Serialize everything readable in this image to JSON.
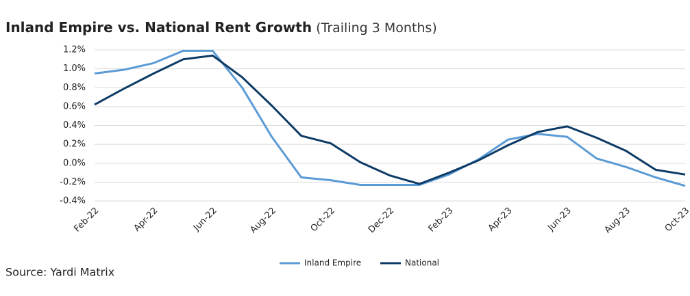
{
  "chart_data": {
    "type": "line",
    "title": "Inland Empire vs. National Rent Growth",
    "subtitle": "(Trailing 3 Months)",
    "source": "Source: Yardi Matrix",
    "categories": [
      "Feb-22",
      null,
      "Apr-22",
      null,
      "Jun-22",
      null,
      "Aug-22",
      null,
      "Oct-22",
      null,
      "Dec-22",
      null,
      "Feb-23",
      null,
      "Apr-23",
      null,
      "Jun-23",
      null,
      "Aug-23",
      null,
      "Oct-23"
    ],
    "series": [
      {
        "name": "Inland Empire",
        "color": "#5b9bd5",
        "values": [
          0.95,
          0.99,
          1.06,
          1.19,
          1.19,
          0.8,
          0.28,
          -0.15,
          -0.18,
          -0.23,
          -0.23,
          -0.23,
          -0.12,
          0.04,
          0.25,
          0.31,
          0.28,
          0.05,
          -0.04,
          -0.15,
          -0.24
        ]
      },
      {
        "name": "National",
        "color": "#0d3b66",
        "values": [
          0.62,
          0.79,
          0.95,
          1.1,
          1.14,
          0.91,
          0.61,
          0.29,
          0.21,
          0.01,
          -0.13,
          -0.22,
          -0.1,
          0.03,
          0.19,
          0.33,
          0.39,
          0.27,
          0.13,
          -0.07,
          -0.12
        ]
      }
    ],
    "ylim": [
      -0.4,
      1.2
    ],
    "yticks": [
      {
        "value": -0.4,
        "label": "-0.4%"
      },
      {
        "value": -0.2,
        "label": "-0.2%"
      },
      {
        "value": 0,
        "label": "0.0%"
      },
      {
        "value": 0.2,
        "label": "0.2%"
      },
      {
        "value": 0.4,
        "label": "0.4%"
      },
      {
        "value": 0.6,
        "label": "0.6%"
      },
      {
        "value": 0.8,
        "label": "0.8%"
      },
      {
        "value": 1.0,
        "label": "1.0%"
      },
      {
        "value": 1.2,
        "label": "1.2%"
      }
    ],
    "grid": true
  }
}
